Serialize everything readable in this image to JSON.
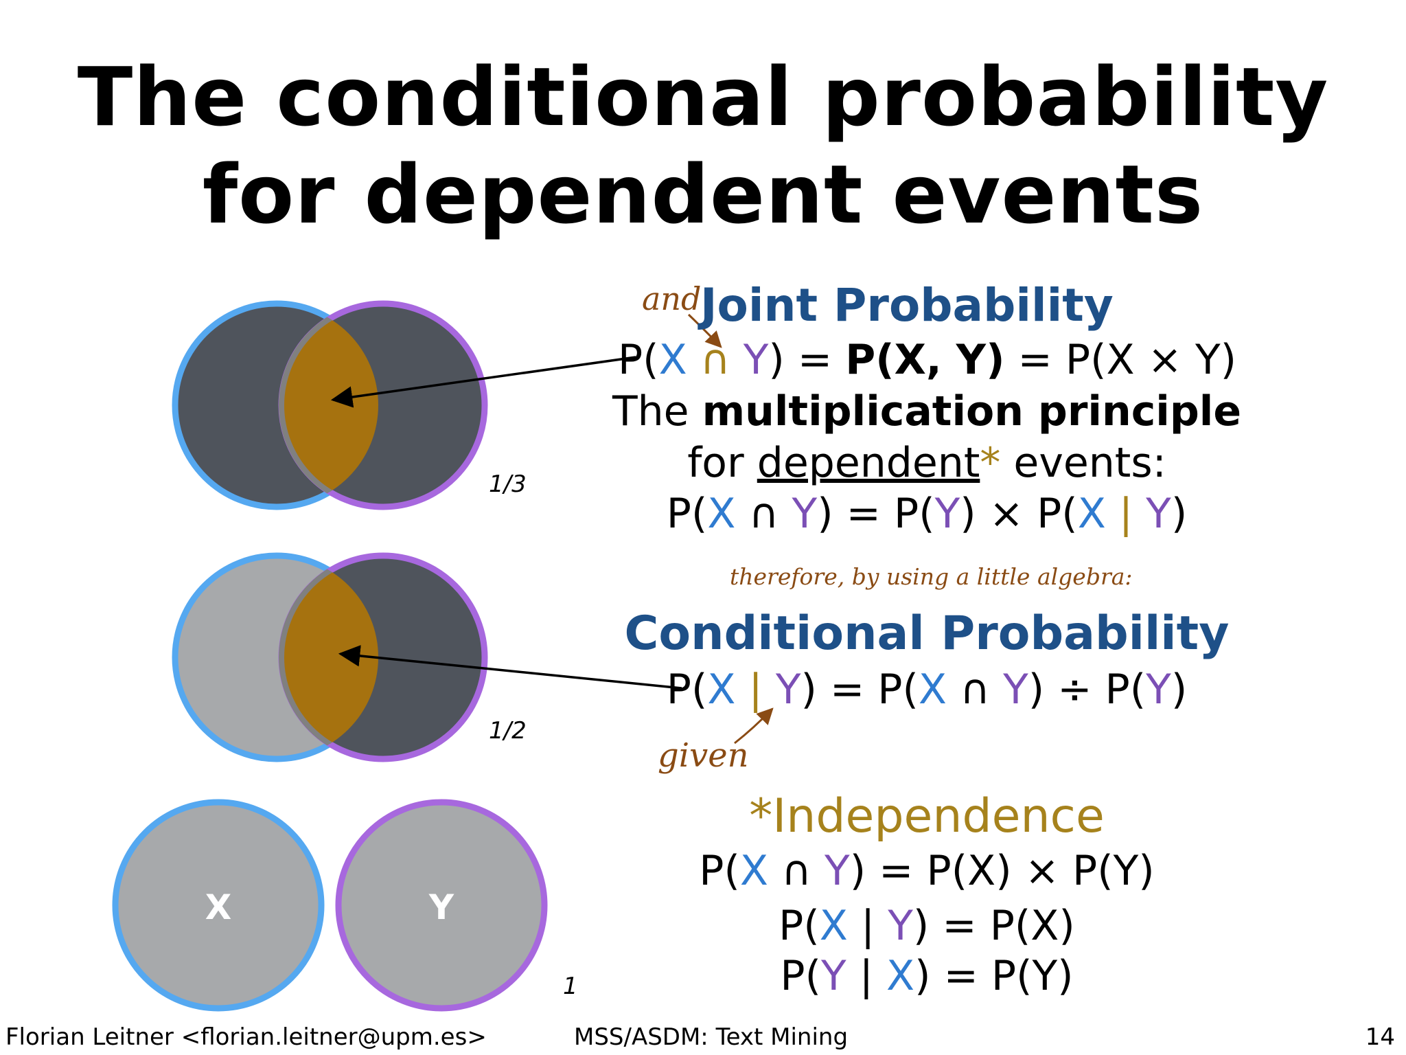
{
  "slide": {
    "title_line1": "The conditional probability",
    "title_line2": "for dependent events"
  },
  "joint": {
    "annotation": "and",
    "heading": "Joint Probability",
    "eq": {
      "p1": "P(",
      "x1": "X",
      "cap1": " ∩ ",
      "y1": "Y",
      "mid": ") = ",
      "bold_p": "P(",
      "bold_x": "X",
      "bold_comma": ", ",
      "bold_y": "Y",
      "bold_close": ")",
      "tail": " = P(X × Y)"
    },
    "mult_pre": "The ",
    "mult_bold": "multiplication principle",
    "for_pre": "for ",
    "for_under": "dependent",
    "for_star": "*",
    "for_post": " events:",
    "eq2": {
      "p1": "P(",
      "x1": "X",
      "cap": " ∩ ",
      "y1": "Y",
      "m1": ") = P(",
      "y2": "Y",
      "m2": ") × P(",
      "x2": "X",
      "bar": " | ",
      "y3": "Y",
      "end": ")"
    }
  },
  "therefore_note": "therefore, by using a little algebra:",
  "conditional": {
    "heading": "Conditional Probability",
    "eq": {
      "p1": "P(",
      "x1": "X",
      "bar": " | ",
      "y1": "Y",
      "m1": ") = P(",
      "x2": "X",
      "cap": " ∩ ",
      "y2": "Y",
      "m2": ") ÷ P(",
      "y3": "Y",
      "end": ")"
    },
    "given_note": "given"
  },
  "independence": {
    "heading": "*Independence",
    "eq1": {
      "p1": "P(",
      "x": "X",
      "cap": " ∩ ",
      "y": "Y",
      "rest": ") = P(X) × P(Y)"
    },
    "eq2": {
      "p1": "P(",
      "x": "X",
      "bar": " | ",
      "y": "Y",
      "rest": ") = P(X)"
    },
    "eq3": {
      "p1": "P(",
      "y": "Y",
      "bar": " | ",
      "x": "X",
      "rest": ") = P(Y)"
    }
  },
  "diagram": {
    "label_x": "X",
    "label_y": "Y",
    "frac_top": "1/3",
    "frac_mid": "1/2",
    "frac_bottom": "1"
  },
  "footer": {
    "author": "Florian Leitner <florian.leitner@upm.es>",
    "course": "MSS/ASDM: Text Mining",
    "page": "14"
  },
  "colors": {
    "circle_x": "#55a8f0",
    "circle_y": "#a768de",
    "dark_fill": "#4f545c",
    "light_fill": "#a7a9ab",
    "intersection": "#a6720f",
    "heading_blue": "#1e5088",
    "gold": "#a6821c"
  }
}
